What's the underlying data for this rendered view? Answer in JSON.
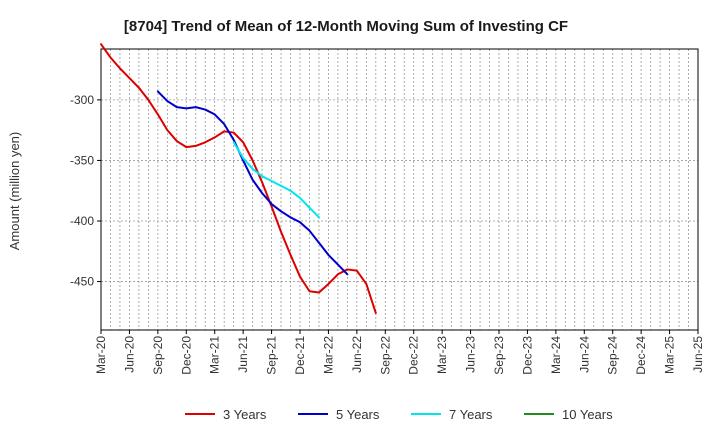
{
  "chart_data": {
    "type": "line",
    "title": "[8704]  Trend of Mean of 12-Month Moving Sum of Investing CF",
    "xlabel": "",
    "ylabel": "Amount (million yen)",
    "ylim": [
      -490,
      -258
    ],
    "yticks": [
      -300,
      -350,
      -400,
      -450
    ],
    "x_ticks": [
      "Mar-20",
      "Jun-20",
      "Sep-20",
      "Dec-20",
      "Mar-21",
      "Jun-21",
      "Sep-21",
      "Dec-21",
      "Mar-22",
      "Jun-22",
      "Sep-22",
      "Dec-22",
      "Mar-23",
      "Jun-23",
      "Sep-23",
      "Dec-23",
      "Mar-24",
      "Jun-24",
      "Sep-24",
      "Dec-24",
      "Mar-25",
      "Jun-25"
    ],
    "grid": true,
    "legend_position": "bottom",
    "series": [
      {
        "name": "3 Years",
        "color": "#dd0000",
        "x_start": 0,
        "values": [
          -254,
          -265,
          -274,
          -282,
          -290,
          -300,
          -312,
          -325,
          -334,
          -339,
          -338,
          -335,
          -331,
          -326,
          -327,
          -335,
          -350,
          -368,
          -388,
          -409,
          -428,
          -446,
          -458,
          -459,
          -452,
          -444,
          -440,
          -441,
          -452,
          -476
        ]
      },
      {
        "name": "5 Years",
        "color": "#0000cc",
        "x_start": 6,
        "values": [
          -293,
          -301,
          -306,
          -307,
          -306,
          -308,
          -312,
          -320,
          -333,
          -350,
          -366,
          -377,
          -386,
          -392,
          -397,
          -401,
          -408,
          -418,
          -428,
          -436,
          -444
        ]
      },
      {
        "name": "7 Years",
        "color": "#00e5ee",
        "x_start": 14,
        "values": [
          -335,
          -348,
          -357,
          -363,
          -367,
          -371,
          -375,
          -381,
          -389,
          -397
        ]
      },
      {
        "name": "10 Years",
        "color": "#228b22",
        "x_start": 0,
        "values": []
      }
    ]
  }
}
